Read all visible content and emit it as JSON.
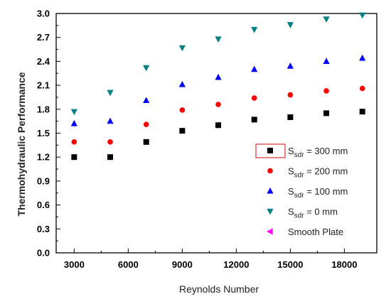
{
  "chart_data": {
    "type": "scatter",
    "xlabel": "Reynolds Number",
    "ylabel": "Thermohydraulic Performance",
    "xlim": [
      2000,
      19800
    ],
    "ylim": [
      0.0,
      3.0
    ],
    "x_ticks": [
      3000,
      6000,
      9000,
      12000,
      15000,
      18000
    ],
    "x_tick_labels": [
      "3000",
      "6000",
      "9000",
      "12000",
      "15000",
      "18000"
    ],
    "y_ticks": [
      0.0,
      0.3,
      0.6,
      0.9,
      1.2,
      1.5,
      1.8,
      2.1,
      2.4,
      2.7,
      3.0
    ],
    "y_tick_labels": [
      "0.0",
      "0.3",
      "0.6",
      "0.9",
      "1.2",
      "1.5",
      "1.8",
      "2.1",
      "2.4",
      "2.7",
      "3.0"
    ],
    "grid": false,
    "legend_position": "bottom-right",
    "series": [
      {
        "name": "300 mm",
        "legend_prefix": "S",
        "legend_sub": "sdr",
        "legend_suffix": " = 300 mm",
        "marker": "square",
        "color": "#000000",
        "x": [
          3000,
          5000,
          7000,
          9000,
          11000,
          13000,
          15000,
          17000,
          19000
        ],
        "y": [
          1.2,
          1.2,
          1.39,
          1.53,
          1.6,
          1.67,
          1.7,
          1.75,
          1.77
        ]
      },
      {
        "name": "200 mm",
        "legend_prefix": "S",
        "legend_sub": "sdr",
        "legend_suffix": " = 200 mm",
        "marker": "circle",
        "color": "#ff0000",
        "x": [
          3000,
          5000,
          7000,
          9000,
          11000,
          13000,
          15000,
          17000,
          19000
        ],
        "y": [
          1.39,
          1.39,
          1.61,
          1.79,
          1.86,
          1.94,
          1.98,
          2.03,
          2.06
        ]
      },
      {
        "name": "100 mm",
        "legend_prefix": "S",
        "legend_sub": "sdr",
        "legend_suffix": " = 100 mm",
        "marker": "triangle-up",
        "color": "#0000ff",
        "x": [
          3000,
          5000,
          7000,
          9000,
          11000,
          13000,
          15000,
          17000,
          19000
        ],
        "y": [
          1.62,
          1.65,
          1.91,
          2.11,
          2.2,
          2.3,
          2.34,
          2.4,
          2.44
        ]
      },
      {
        "name": "0 mm",
        "legend_prefix": "S",
        "legend_sub": "sdr",
        "legend_suffix": " =  0 mm",
        "marker": "triangle-down",
        "color": "#008080",
        "x": [
          3000,
          5000,
          7000,
          9000,
          11000,
          13000,
          15000,
          17000,
          19000
        ],
        "y": [
          1.77,
          2.01,
          2.32,
          2.57,
          2.68,
          2.8,
          2.86,
          2.93,
          2.98
        ]
      },
      {
        "name": "Smooth Plate",
        "legend_prefix": "",
        "legend_sub": "",
        "legend_suffix": "Smooth Plate",
        "marker": "triangle-left",
        "color": "#ff00ff",
        "x": [],
        "y": []
      }
    ]
  }
}
